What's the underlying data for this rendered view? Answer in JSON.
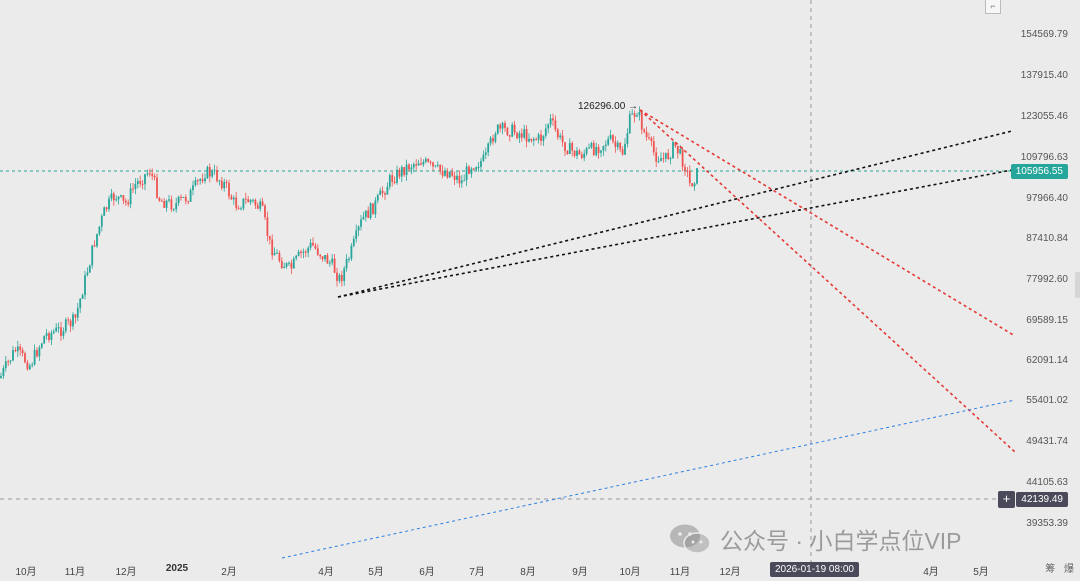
{
  "chart": {
    "price_axis": [
      "154569.79",
      "137915.40",
      "123055.46",
      "109796.63",
      "97966.40",
      "87410.84",
      "77992.60",
      "69589.15",
      "62091.14",
      "55401.02",
      "49431.74",
      "44105.63",
      "39353.39"
    ],
    "price_axis_values": [
      154569.79,
      137915.4,
      123055.46,
      109796.63,
      97966.4,
      87410.84,
      77992.6,
      69589.15,
      62091.14,
      55401.02,
      49431.74,
      44105.63,
      39353.39
    ],
    "time_axis": [
      "10月",
      "11月",
      "12月",
      "2025",
      "2月",
      "4月",
      "5月",
      "6月",
      "7月",
      "8月",
      "9月",
      "10月",
      "11月",
      "12月",
      "4月",
      "5月"
    ],
    "current_price": "105956.55",
    "crosshair_price": "42139.49",
    "crosshair_time": "2026-01-19 08:00",
    "peak_label": "126296.00 →",
    "axis_menu": [
      "筹",
      "爆"
    ],
    "scale": "log",
    "colors": {
      "up": "#26a69a",
      "down": "#ef5350",
      "current_price_line": "#26a69a",
      "red_projection": "#e53935",
      "black_trendline": "#111111",
      "blue_trendline": "#2f7fe0",
      "crosshair": "#9a9a9a"
    }
  },
  "watermark": {
    "text": "公众号 · 小白学点位VIP",
    "icon": "wechat-icon"
  },
  "corner_icon": "collapse-icon",
  "crosshair_button": "+"
}
